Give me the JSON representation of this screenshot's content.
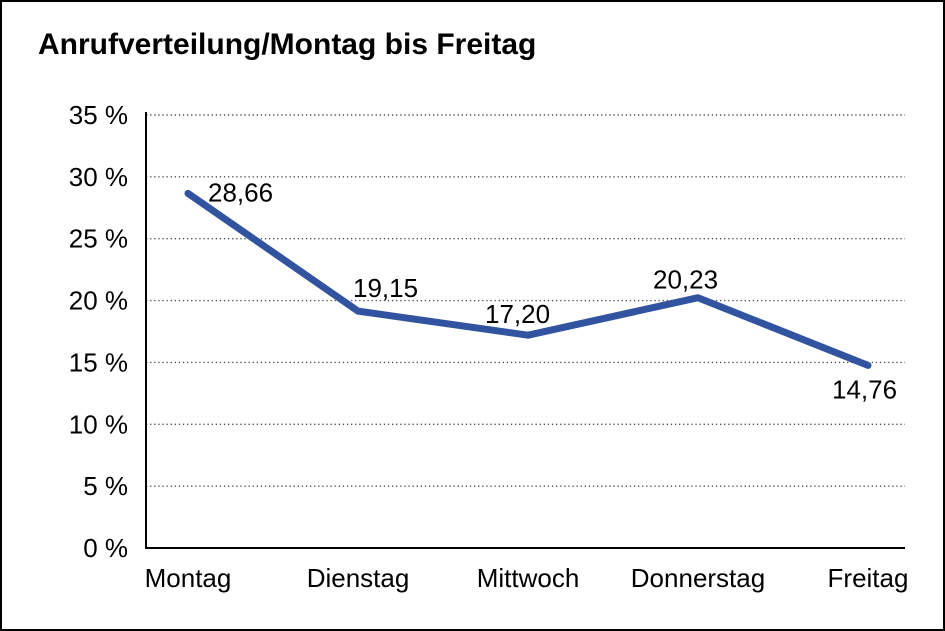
{
  "window": {
    "background": "#ffffff",
    "frame_border_color": "#000000"
  },
  "chart_data": {
    "type": "line",
    "title": "Anrufverteilung/Montag bis Freitag",
    "categories": [
      "Montag",
      "Dienstag",
      "Mittwoch",
      "Donnerstag",
      "Freitag"
    ],
    "values": [
      28.66,
      19.15,
      17.2,
      20.23,
      14.76
    ],
    "data_labels": [
      "28,66",
      "19,15",
      "17,20",
      "20,23",
      "14,76"
    ],
    "xlabel": "",
    "ylabel": "",
    "ylim": [
      0,
      35
    ],
    "ytick_step": 5,
    "ytick_labels": [
      "0 %",
      "5 %",
      "10 %",
      "15 %",
      "20 %",
      "25 %",
      "30 %",
      "35 %"
    ],
    "grid": "horizontal-dotted",
    "gridline_color": "#4d4d4d",
    "axis_color": "#000000",
    "legend": "none",
    "line_color": "#3254A0",
    "text_color": "#000000"
  }
}
